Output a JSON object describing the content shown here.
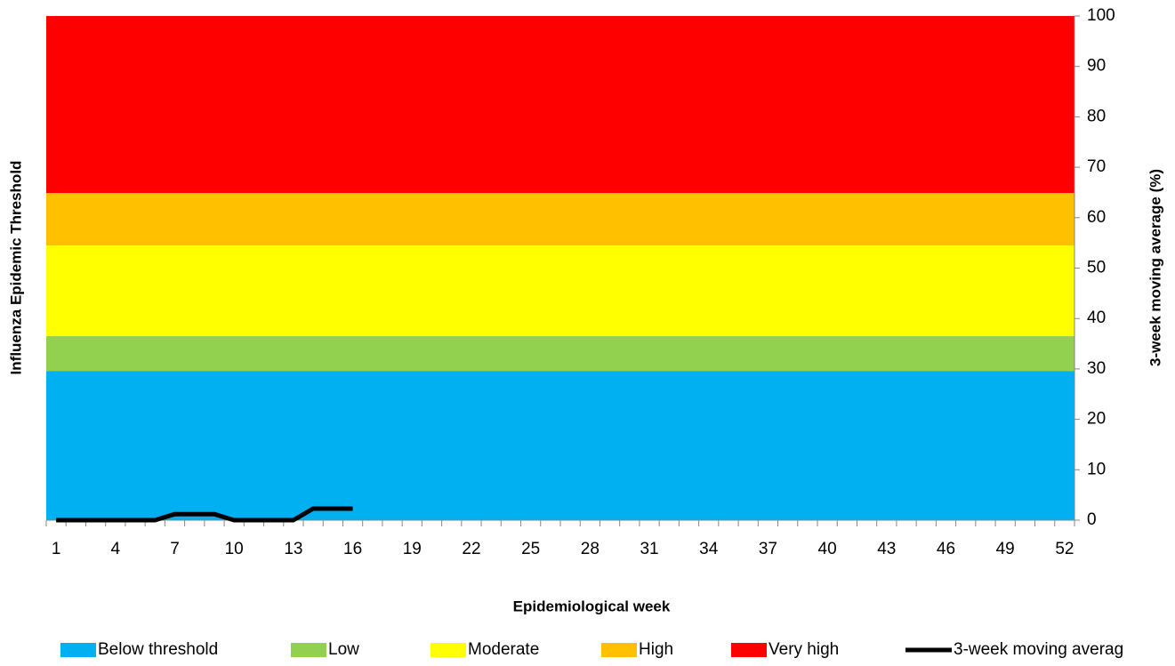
{
  "chart_data": {
    "type": "stacked-area-line",
    "xlabel": "Epidemiological week",
    "ylabel": "Influenza Epidemic Threshold",
    "y2label": "3-week moving average (%)",
    "categories": [
      1,
      null,
      null,
      4,
      null,
      null,
      7,
      null,
      null,
      10,
      null,
      null,
      13,
      null,
      null,
      16,
      null,
      null,
      19,
      null,
      null,
      22,
      null,
      null,
      25,
      null,
      null,
      28,
      null,
      null,
      31,
      null,
      null,
      34,
      null,
      null,
      37,
      null,
      null,
      40,
      null,
      null,
      43,
      null,
      null,
      46,
      null,
      null,
      49,
      null,
      null,
      52
    ],
    "y2lim": [
      0,
      100
    ],
    "y2ticks": [
      0,
      10,
      20,
      30,
      40,
      50,
      60,
      70,
      80,
      90,
      100
    ],
    "series": [
      {
        "name": "Below threshold",
        "color": "#00b0f0",
        "kind": "band",
        "axis": "y2",
        "values": [
          29.6,
          29.6,
          29.6,
          29.6,
          29.6,
          29.6,
          29.6,
          29.6,
          29.6,
          29.6,
          29.6,
          29.6,
          29.6,
          29.6,
          29.6,
          29.6,
          29.6,
          29.6,
          29.6,
          29.6,
          29.6,
          29.6,
          29.6,
          29.6,
          29.6,
          29.6,
          29.6,
          29.6,
          29.6,
          29.6,
          29.6,
          29.6,
          29.6,
          29.6,
          29.6,
          29.6,
          29.6,
          29.6,
          29.6,
          29.6,
          29.6,
          29.6,
          29.6,
          29.6,
          29.6,
          29.6,
          29.6,
          29.6,
          29.6,
          29.6,
          29.6,
          29.6
        ]
      },
      {
        "name": "Low",
        "color": "#92d050",
        "kind": "band",
        "axis": "y2",
        "values": [
          6.9,
          6.9,
          6.9,
          6.9,
          6.9,
          6.9,
          6.9,
          6.9,
          6.9,
          6.9,
          6.9,
          6.9,
          6.9,
          6.9,
          6.9,
          6.9,
          6.9,
          6.9,
          6.9,
          6.9,
          6.9,
          6.9,
          6.9,
          6.9,
          6.9,
          6.9,
          6.9,
          6.9,
          6.9,
          6.9,
          6.9,
          6.9,
          6.9,
          6.9,
          6.9,
          6.9,
          6.9,
          6.9,
          6.9,
          6.9,
          6.9,
          6.9,
          6.9,
          6.9,
          6.9,
          6.9,
          6.9,
          6.9,
          6.9,
          6.9,
          6.9,
          6.9
        ]
      },
      {
        "name": "Moderate",
        "color": "#ffff00",
        "kind": "band",
        "axis": "y2",
        "values": [
          18,
          18,
          18,
          18,
          18,
          18,
          18,
          18,
          18,
          18,
          18,
          18,
          18,
          18,
          18,
          18,
          18,
          18,
          18,
          18,
          18,
          18,
          18,
          18,
          18,
          18,
          18,
          18,
          18,
          18,
          18,
          18,
          18,
          18,
          18,
          18,
          18,
          18,
          18,
          18,
          18,
          18,
          18,
          18,
          18,
          18,
          18,
          18,
          18,
          18,
          18,
          18
        ]
      },
      {
        "name": "High",
        "color": "#ffc000",
        "kind": "band",
        "axis": "y2",
        "values": [
          10.4,
          10.4,
          10.4,
          10.4,
          10.4,
          10.4,
          10.4,
          10.4,
          10.4,
          10.4,
          10.4,
          10.4,
          10.4,
          10.4,
          10.4,
          10.4,
          10.4,
          10.4,
          10.4,
          10.4,
          10.4,
          10.4,
          10.4,
          10.4,
          10.4,
          10.4,
          10.4,
          10.4,
          10.4,
          10.4,
          10.4,
          10.4,
          10.4,
          10.4,
          10.4,
          10.4,
          10.4,
          10.4,
          10.4,
          10.4,
          10.4,
          10.4,
          10.4,
          10.4,
          10.4,
          10.4,
          10.4,
          10.4,
          10.4,
          10.4,
          10.4,
          10.4
        ]
      },
      {
        "name": "Very high",
        "color": "#ff0000",
        "kind": "band",
        "axis": "y2",
        "values": [
          35.1,
          35.1,
          35.1,
          35.1,
          35.1,
          35.1,
          35.1,
          35.1,
          35.1,
          35.1,
          35.1,
          35.1,
          35.1,
          35.1,
          35.1,
          35.1,
          35.1,
          35.1,
          35.1,
          35.1,
          35.1,
          35.1,
          35.1,
          35.1,
          35.1,
          35.1,
          35.1,
          35.1,
          35.1,
          35.1,
          35.1,
          35.1,
          35.1,
          35.1,
          35.1,
          35.1,
          35.1,
          35.1,
          35.1,
          35.1,
          35.1,
          35.1,
          35.1,
          35.1,
          35.1,
          35.1,
          35.1,
          35.1,
          35.1,
          35.1,
          35.1,
          35.1
        ]
      },
      {
        "name": "3-week moving averag",
        "color": "#000000",
        "kind": "line",
        "axis": "y2",
        "values": [
          0,
          0,
          0,
          0,
          0,
          0,
          1.2,
          1.2,
          1.2,
          0,
          0,
          0,
          0,
          2.3,
          2.3,
          2.3,
          null,
          null,
          null,
          null,
          null,
          null,
          null,
          null,
          null,
          null,
          null,
          null,
          null,
          null,
          null,
          null,
          null,
          null,
          null,
          null,
          null,
          null,
          null,
          null,
          null,
          null,
          null,
          null,
          null,
          null,
          null,
          null,
          null,
          null,
          null,
          null
        ]
      }
    ]
  }
}
